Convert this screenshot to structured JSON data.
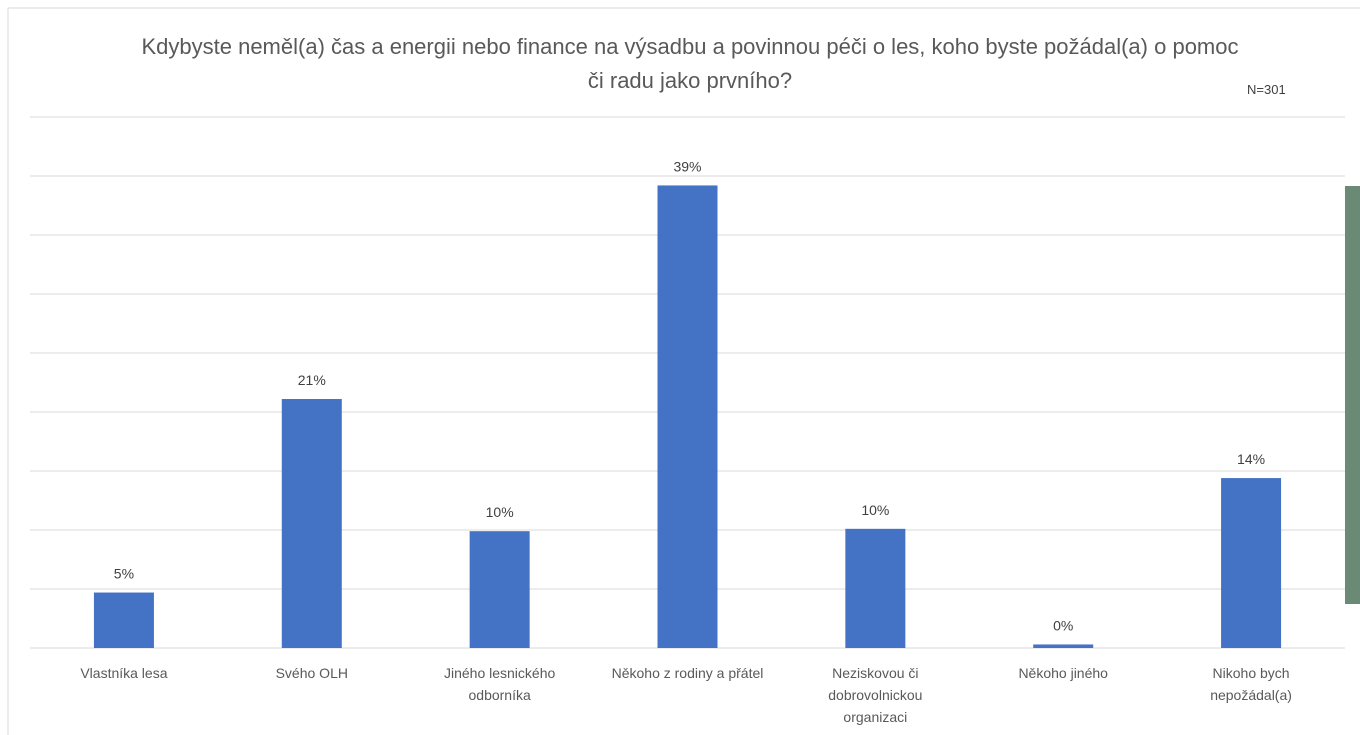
{
  "chart_data": {
    "type": "bar",
    "title": "Kdybyste neměl(a) čas a energii nebo finance na výsadbu a povinnou péči o les, koho byste požádal(a) o pomoc či radu jako prvního?",
    "annotation": "N=301",
    "categories": [
      "Vlastníka lesa",
      "Svého OLH",
      "Jiného lesnického odborníka",
      "Někoho z rodiny a přátel",
      "Neziskovou či dobrovolnickou organizaci",
      "Někoho jiného",
      "Nikoho bych nepožádal(a)"
    ],
    "values": [
      4.7,
      21.1,
      9.9,
      39.2,
      10.1,
      0.3,
      14.4
    ],
    "value_labels": [
      "5%",
      "21%",
      "10%",
      "39%",
      "10%",
      "0%",
      "14%"
    ],
    "color": "#4472c4",
    "ylim": [
      0,
      45
    ],
    "yticks": [
      0,
      5,
      10,
      15,
      20,
      25,
      30,
      35,
      40,
      45
    ],
    "grid": true
  }
}
